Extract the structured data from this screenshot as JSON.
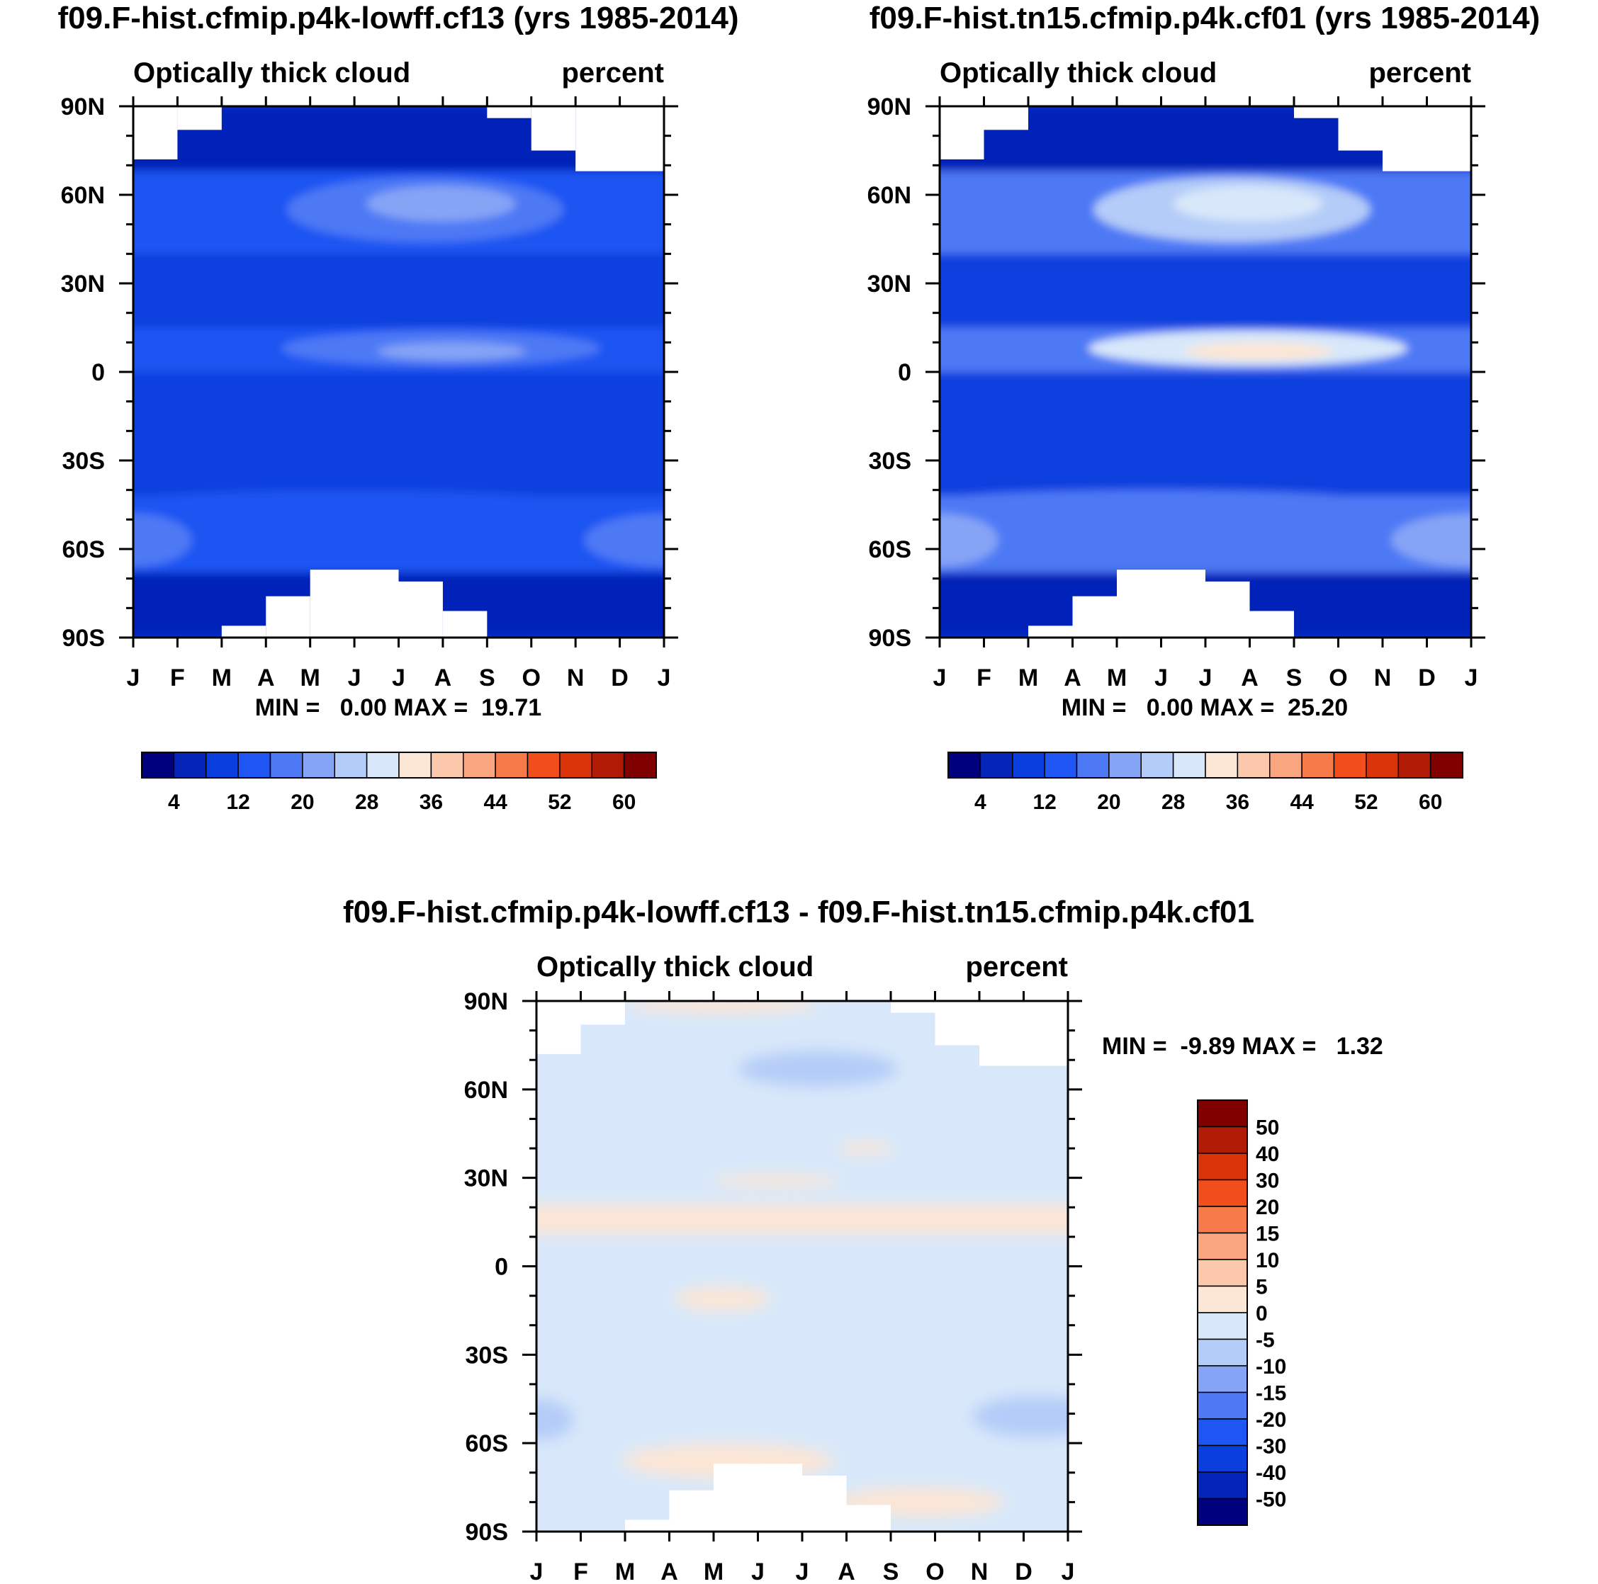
{
  "chart_data": [
    {
      "type": "heatmap",
      "title": "f09.F-hist.cfmip.p4k-lowff.cf13 (yrs 1985-2014)",
      "subtitle_left": "Optically thick cloud",
      "subtitle_right": "percent",
      "x_ticks": [
        "J",
        "F",
        "M",
        "A",
        "M",
        "J",
        "J",
        "A",
        "S",
        "O",
        "N",
        "D",
        "J"
      ],
      "y_ticks": [
        "90N",
        "60N",
        "30N",
        "0",
        "30S",
        "60S",
        "90S"
      ],
      "ylim": [
        -90,
        90
      ],
      "stats_text": "MIN =   0.00 MAX =  19.71",
      "colorbar_labels": [
        "4",
        "12",
        "20",
        "28",
        "36",
        "44",
        "52",
        "60"
      ],
      "colorbar_colors": [
        "#00007F",
        "#0524B8",
        "#0A3FDE",
        "#1F55F2",
        "#4D79F5",
        "#86A4F6",
        "#B4CCF8",
        "#D8E8FA",
        "#FCE6D5",
        "#FBC8AC",
        "#F9A57F",
        "#F77A4A",
        "#F14E1B",
        "#DA3209",
        "#B01B06",
        "#800000"
      ],
      "fill_levels": {
        "high_lat": 1,
        "midlat_north": 3,
        "arctic_peak": 4,
        "tropics": 3,
        "itcz_peak": 4,
        "subtropics": 2,
        "southern_ocean": 3,
        "southern_peak": 4
      }
    },
    {
      "type": "heatmap",
      "title": "f09.F-hist.tn15.cfmip.p4k.cf01 (yrs 1985-2014)",
      "subtitle_left": "Optically thick cloud",
      "subtitle_right": "percent",
      "x_ticks": [
        "J",
        "F",
        "M",
        "A",
        "M",
        "J",
        "J",
        "A",
        "S",
        "O",
        "N",
        "D",
        "J"
      ],
      "y_ticks": [
        "90N",
        "60N",
        "30N",
        "0",
        "30S",
        "60S",
        "90S"
      ],
      "ylim": [
        -90,
        90
      ],
      "stats_text": "MIN =   0.00 MAX =  25.20",
      "colorbar_labels": [
        "4",
        "12",
        "20",
        "28",
        "36",
        "44",
        "52",
        "60"
      ],
      "colorbar_colors": [
        "#00007F",
        "#0524B8",
        "#0A3FDE",
        "#1F55F2",
        "#4D79F5",
        "#86A4F6",
        "#B4CCF8",
        "#D8E8FA",
        "#FCE6D5",
        "#FBC8AC",
        "#F9A57F",
        "#F77A4A",
        "#F14E1B",
        "#DA3209",
        "#B01B06",
        "#800000"
      ],
      "fill_levels": {
        "high_lat": 1,
        "midlat_north": 4,
        "arctic_peak": 6,
        "tropics": 4,
        "itcz_peak": 7,
        "subtropics": 2,
        "southern_ocean": 4,
        "southern_peak": 5
      }
    },
    {
      "type": "heatmap",
      "title": "f09.F-hist.cfmip.p4k-lowff.cf13 - f09.F-hist.tn15.cfmip.p4k.cf01",
      "subtitle_left": "Optically thick cloud",
      "subtitle_right": "percent",
      "x_ticks": [
        "J",
        "F",
        "M",
        "A",
        "M",
        "J",
        "J",
        "A",
        "S",
        "O",
        "N",
        "D",
        "J"
      ],
      "y_ticks": [
        "90N",
        "60N",
        "30N",
        "0",
        "30S",
        "60S",
        "90S"
      ],
      "ylim": [
        -90,
        90
      ],
      "stats_text": "MIN =  -9.89 MAX =   1.32",
      "colorbar_labels": [
        "50",
        "40",
        "30",
        "20",
        "15",
        "10",
        "5",
        "0",
        "-5",
        "-10",
        "-15",
        "-20",
        "-30",
        "-40",
        "-50"
      ],
      "colorbar_colors": [
        "#800000",
        "#B01B06",
        "#DA3209",
        "#F14E1B",
        "#F77A4A",
        "#F9A57F",
        "#FBC8AC",
        "#FCE6D5",
        "#D8E8FA",
        "#B4CCF8",
        "#86A4F6",
        "#4D79F5",
        "#1F55F2",
        "#0A3FDE",
        "#0524B8",
        "#00007F"
      ],
      "background_color": "#D8E8FA",
      "positive_color": "#FCE6D5",
      "negative_color": "#B4CCF8"
    }
  ]
}
